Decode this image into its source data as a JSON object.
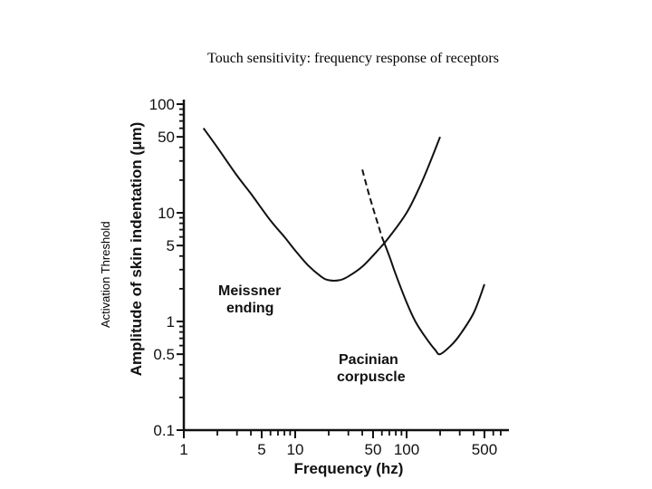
{
  "slide": {
    "title": "Touch sensitivity: frequency response of receptors",
    "side_label": "Activation Threshold"
  },
  "chart_data": {
    "type": "line",
    "title": "",
    "xlabel": "Frequency (hz)",
    "ylabel": "Amplitude of skin indentation (μm)",
    "x_scale": "log",
    "y_scale": "log",
    "xlim": [
      1,
      700
    ],
    "ylim": [
      0.1,
      100
    ],
    "grid": false,
    "x_tick_labels": [
      {
        "value": 1,
        "label": "1"
      },
      {
        "value": 5,
        "label": "5"
      },
      {
        "value": 10,
        "label": "10"
      },
      {
        "value": 50,
        "label": "50"
      },
      {
        "value": 100,
        "label": "100"
      },
      {
        "value": 500,
        "label": "500"
      }
    ],
    "x_minor_ticks": [
      2,
      3,
      4,
      6,
      7,
      8,
      9,
      20,
      30,
      40,
      60,
      70,
      80,
      90,
      200,
      300,
      400,
      600,
      700
    ],
    "y_tick_labels": [
      {
        "value": 0.1,
        "label": "0.1"
      },
      {
        "value": 0.5,
        "label": "0.5"
      },
      {
        "value": 1,
        "label": "1"
      },
      {
        "value": 5,
        "label": "5"
      },
      {
        "value": 10,
        "label": "10"
      },
      {
        "value": 50,
        "label": "50"
      },
      {
        "value": 100,
        "label": "100"
      }
    ],
    "y_minor_ticks": [
      0.2,
      0.3,
      0.4,
      0.6,
      0.7,
      0.8,
      0.9,
      2,
      3,
      4,
      6,
      7,
      8,
      9,
      20,
      30,
      40,
      60,
      70,
      80,
      90
    ],
    "series": [
      {
        "name": "Meissner ending",
        "x": [
          1.5,
          2,
          3,
          4,
          6,
          8,
          10,
          13,
          17,
          20,
          25,
          30,
          40,
          55,
          70,
          100,
          130,
          160,
          200
        ],
        "y": [
          60,
          40,
          22,
          15,
          8.5,
          6,
          4.5,
          3.3,
          2.6,
          2.4,
          2.4,
          2.6,
          3.2,
          4.5,
          6,
          10,
          17,
          28,
          50
        ],
        "dashed_until_x": null
      },
      {
        "name": "Pacinian corpuscle",
        "x": [
          40,
          45,
          50,
          55,
          60,
          70,
          80,
          100,
          120,
          150,
          180,
          200,
          250,
          300,
          400,
          500
        ],
        "y": [
          25,
          16,
          11,
          8,
          6,
          4,
          2.7,
          1.5,
          1,
          0.7,
          0.55,
          0.5,
          0.6,
          0.75,
          1.2,
          2.2
        ],
        "dashed_until_x": 60
      }
    ],
    "annotations": [
      {
        "text": "Meissner",
        "series": "Meissner ending"
      },
      {
        "text": "ending",
        "series": "Meissner ending"
      },
      {
        "text": "Pacinian",
        "series": "Pacinian corpuscle"
      },
      {
        "text": "corpuscle",
        "series": "Pacinian corpuscle"
      }
    ]
  }
}
